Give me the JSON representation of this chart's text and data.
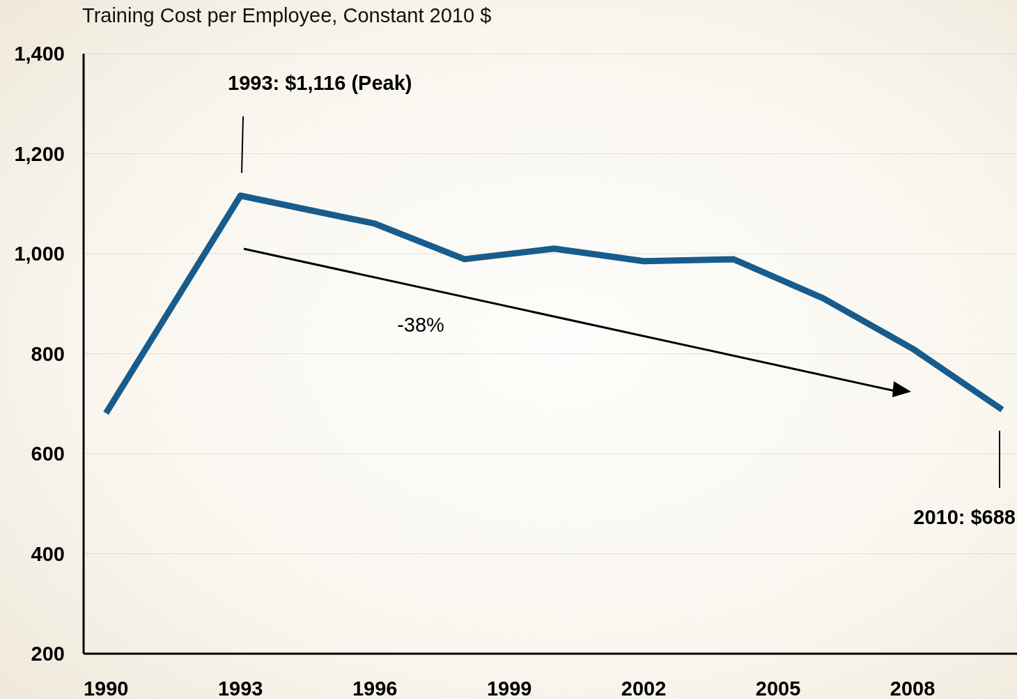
{
  "chart_data": {
    "type": "line",
    "title": "Training Cost per Employee, Constant 2010 $",
    "x": [
      1990,
      1993,
      1996,
      1998,
      2000,
      2002,
      2004,
      2006,
      2008,
      2010
    ],
    "series": [
      {
        "color": "#175c8c",
        "values": [
          681,
          1116,
          1060,
          989,
          1010,
          985,
          989,
          911,
          810,
          688
        ]
      }
    ],
    "xlim": [
      1989.5,
      2010.33
    ],
    "xticks": [
      1990,
      1993,
      1996,
      1999,
      2002,
      2005,
      2008
    ],
    "ylim": [
      200,
      1400
    ],
    "yticks": [
      {
        "value": 200,
        "label": "200"
      },
      {
        "value": 400,
        "label": "400"
      },
      {
        "value": 600,
        "label": "600"
      },
      {
        "value": 800,
        "label": "800"
      },
      {
        "value": 1000,
        "label": "1,000"
      },
      {
        "value": 1200,
        "label": "1,200"
      },
      {
        "value": 1400,
        "label": "1,400"
      }
    ],
    "grid": "y",
    "marker": "none",
    "line_style": "solid",
    "annotations": [
      "1993: $1,116 (Peak)",
      "-38%",
      "2010: $688"
    ]
  }
}
